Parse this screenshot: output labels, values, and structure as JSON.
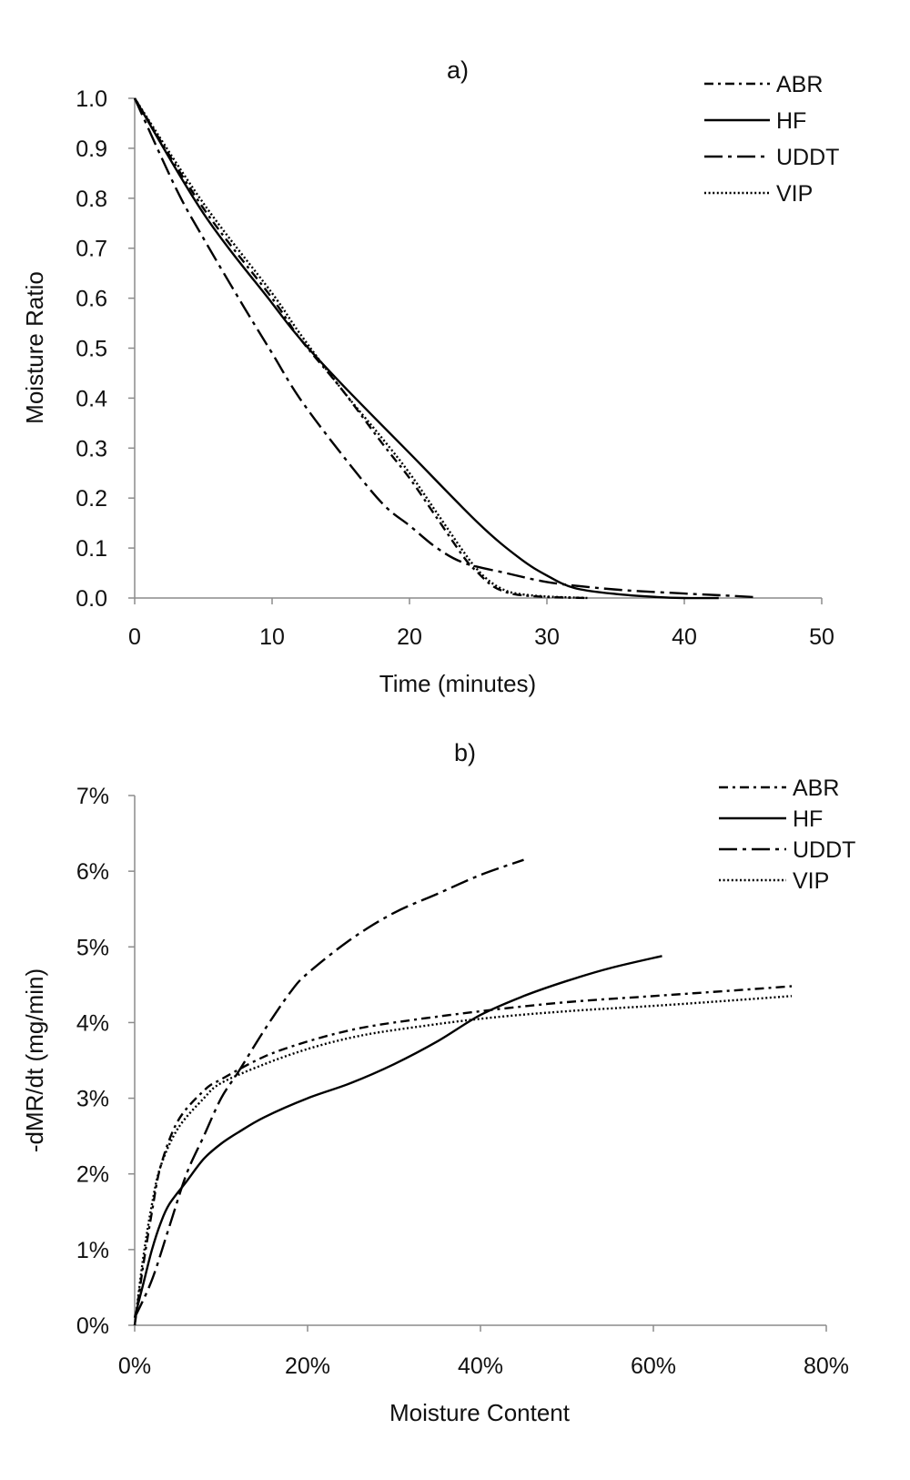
{
  "chart_data": [
    {
      "type": "line",
      "title": "a)",
      "xlabel": "Time (minutes)",
      "ylabel": "Moisture Ratio",
      "xlim": [
        0,
        50
      ],
      "ylim": [
        0,
        1
      ],
      "x_ticks": [
        "0",
        "10",
        "20",
        "30",
        "40",
        "50"
      ],
      "y_ticks": [
        "0.0",
        "0.1",
        "0.2",
        "0.3",
        "0.4",
        "0.5",
        "0.6",
        "0.7",
        "0.8",
        "0.9",
        "1.0"
      ],
      "grid": false,
      "legend_position": "top-right",
      "series": [
        {
          "name": "ABR",
          "dash": "dash-dot",
          "points": [
            [
              0,
              1.0
            ],
            [
              5,
              0.78
            ],
            [
              10,
              0.6
            ],
            [
              12,
              0.52
            ],
            [
              15,
              0.42
            ],
            [
              18,
              0.31
            ],
            [
              20,
              0.24
            ],
            [
              22,
              0.16
            ],
            [
              24,
              0.08
            ],
            [
              25,
              0.05
            ],
            [
              26,
              0.025
            ],
            [
              27,
              0.012
            ],
            [
              28,
              0.006
            ],
            [
              30,
              0.002
            ],
            [
              33,
              0.0
            ]
          ]
        },
        {
          "name": "HF",
          "dash": "solid",
          "points": [
            [
              0,
              1.0
            ],
            [
              5,
              0.77
            ],
            [
              10,
              0.59
            ],
            [
              12,
              0.52
            ],
            [
              15,
              0.43
            ],
            [
              20,
              0.29
            ],
            [
              25,
              0.15
            ],
            [
              28,
              0.08
            ],
            [
              30,
              0.045
            ],
            [
              32,
              0.02
            ],
            [
              35,
              0.008
            ],
            [
              38,
              0.002
            ],
            [
              40,
              0.0
            ],
            [
              42.5,
              0.0
            ]
          ]
        },
        {
          "name": "UDDT",
          "dash": "long-dash-dot",
          "points": [
            [
              0,
              1.0
            ],
            [
              3,
              0.82
            ],
            [
              5,
              0.72
            ],
            [
              8,
              0.58
            ],
            [
              10,
              0.49
            ],
            [
              12,
              0.4
            ],
            [
              15,
              0.29
            ],
            [
              18,
              0.19
            ],
            [
              20,
              0.145
            ],
            [
              22,
              0.1
            ],
            [
              24,
              0.07
            ],
            [
              27,
              0.05
            ],
            [
              30,
              0.032
            ],
            [
              33,
              0.022
            ],
            [
              36,
              0.015
            ],
            [
              40,
              0.009
            ],
            [
              43,
              0.005
            ],
            [
              45,
              0.002
            ]
          ]
        },
        {
          "name": "VIP",
          "dash": "dotted",
          "points": [
            [
              0,
              1.0
            ],
            [
              5,
              0.79
            ],
            [
              10,
              0.61
            ],
            [
              12,
              0.53
            ],
            [
              15,
              0.42
            ],
            [
              18,
              0.32
            ],
            [
              20,
              0.25
            ],
            [
              22,
              0.17
            ],
            [
              24,
              0.09
            ],
            [
              25,
              0.055
            ],
            [
              26,
              0.03
            ],
            [
              27,
              0.015
            ],
            [
              28,
              0.008
            ],
            [
              30,
              0.003
            ],
            [
              33,
              0.0
            ]
          ]
        }
      ]
    },
    {
      "type": "line",
      "title": "b)",
      "xlabel": "Moisture Content",
      "ylabel": "-dMR/dt (mg/min)",
      "xlim": [
        0,
        80
      ],
      "ylim": [
        0,
        7
      ],
      "x_ticks": [
        "0%",
        "20%",
        "40%",
        "60%",
        "80%"
      ],
      "y_ticks": [
        "0%",
        "1%",
        "2%",
        "3%",
        "4%",
        "5%",
        "6%",
        "7%"
      ],
      "grid": false,
      "legend_position": "top-right",
      "series": [
        {
          "name": "ABR",
          "dash": "dash-dot",
          "points": [
            [
              0,
              0.0
            ],
            [
              1,
              0.8
            ],
            [
              2,
              1.5
            ],
            [
              3,
              2.1
            ],
            [
              5,
              2.7
            ],
            [
              8,
              3.1
            ],
            [
              10,
              3.25
            ],
            [
              15,
              3.55
            ],
            [
              20,
              3.75
            ],
            [
              25,
              3.9
            ],
            [
              30,
              4.0
            ],
            [
              40,
              4.15
            ],
            [
              50,
              4.27
            ],
            [
              60,
              4.35
            ],
            [
              70,
              4.43
            ],
            [
              76,
              4.48
            ]
          ]
        },
        {
          "name": "HF",
          "dash": "solid",
          "points": [
            [
              0,
              0.1
            ],
            [
              1,
              0.55
            ],
            [
              2,
              1.0
            ],
            [
              3,
              1.35
            ],
            [
              4,
              1.6
            ],
            [
              6,
              1.9
            ],
            [
              8,
              2.2
            ],
            [
              10,
              2.4
            ],
            [
              12,
              2.55
            ],
            [
              15,
              2.75
            ],
            [
              20,
              3.0
            ],
            [
              25,
              3.2
            ],
            [
              30,
              3.45
            ],
            [
              35,
              3.75
            ],
            [
              40,
              4.1
            ],
            [
              45,
              4.35
            ],
            [
              50,
              4.55
            ],
            [
              55,
              4.72
            ],
            [
              61,
              4.88
            ]
          ]
        },
        {
          "name": "UDDT",
          "dash": "long-dash-dot",
          "points": [
            [
              0,
              0.1
            ],
            [
              2,
              0.6
            ],
            [
              4,
              1.3
            ],
            [
              6,
              2.0
            ],
            [
              8,
              2.5
            ],
            [
              10,
              3.0
            ],
            [
              12,
              3.35
            ],
            [
              15,
              3.9
            ],
            [
              18,
              4.4
            ],
            [
              20,
              4.65
            ],
            [
              25,
              5.1
            ],
            [
              30,
              5.45
            ],
            [
              35,
              5.7
            ],
            [
              40,
              5.95
            ],
            [
              45,
              6.15
            ]
          ]
        },
        {
          "name": "VIP",
          "dash": "dotted",
          "points": [
            [
              0,
              0.0
            ],
            [
              1,
              0.9
            ],
            [
              2,
              1.6
            ],
            [
              3,
              2.1
            ],
            [
              5,
              2.6
            ],
            [
              8,
              3.0
            ],
            [
              10,
              3.2
            ],
            [
              15,
              3.45
            ],
            [
              20,
              3.65
            ],
            [
              25,
              3.8
            ],
            [
              30,
              3.9
            ],
            [
              40,
              4.05
            ],
            [
              50,
              4.15
            ],
            [
              60,
              4.22
            ],
            [
              70,
              4.3
            ],
            [
              76,
              4.35
            ]
          ]
        }
      ]
    }
  ]
}
